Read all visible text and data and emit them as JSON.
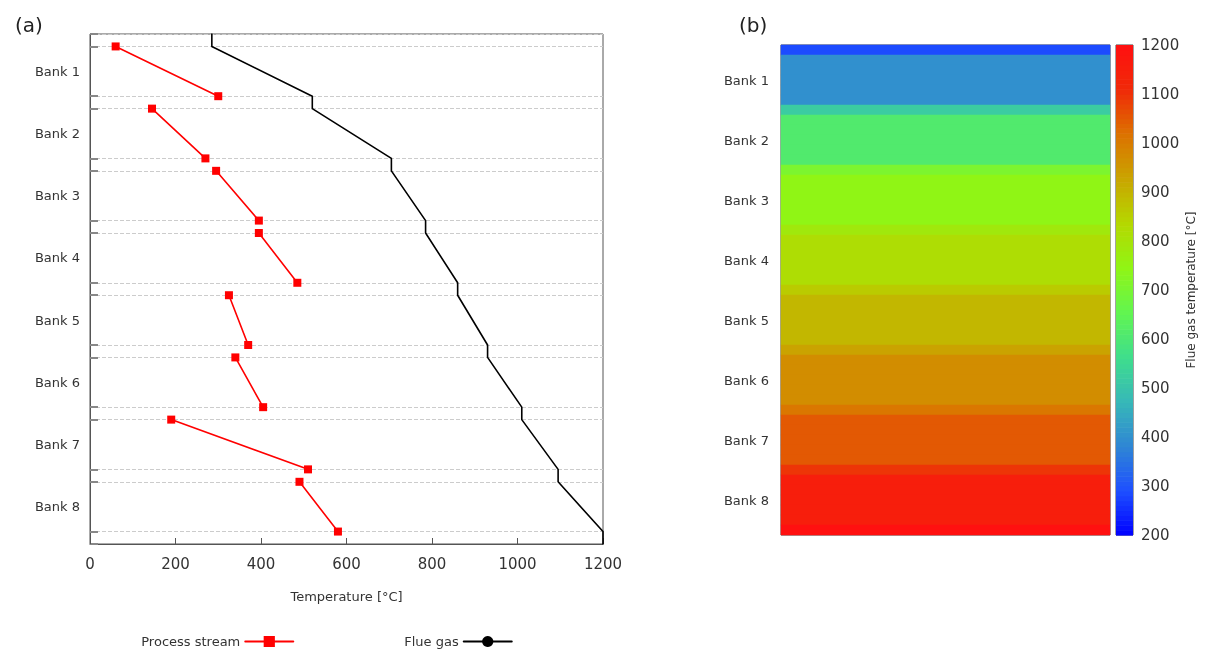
{
  "chart_data": [
    {
      "type": "line",
      "title": "(a)",
      "xlabel": "Temperature [°C]",
      "orientation": "horizontal",
      "xlim": [
        0,
        1200
      ],
      "xticks": [
        0,
        200,
        400,
        600,
        800,
        1000,
        1200
      ],
      "categories": [
        null,
        null,
        null,
        "Bank 1",
        null,
        null,
        null,
        null,
        "Bank 2",
        null,
        null,
        null,
        null,
        "Bank 3",
        null,
        null,
        null,
        null,
        "Bank 4",
        null,
        null,
        null,
        null,
        "Bank 5",
        null,
        null,
        null,
        null,
        "Bank 6",
        null,
        null,
        null,
        null,
        "Bank 7",
        null,
        null,
        null,
        null,
        "Bank 8",
        null,
        null,
        null
      ],
      "grid": "y",
      "legend": "bottom",
      "line_style": "solid",
      "series": [
        {
          "name": "Process stream",
          "color": "#ff0000",
          "marker": "square",
          "values": [
            null,
            60,
            null,
            null,
            null,
            300,
            null,
            null,
            null,
            null,
            null,
            null,
            null,
            null,
            null,
            null,
            null,
            null,
            null,
            null,
            null,
            null,
            null,
            null,
            null,
            null,
            null,
            null,
            null,
            null,
            null,
            null,
            null,
            null,
            null,
            null,
            null,
            null,
            null,
            null,
            null,
            null
          ]
        },
        {
          "color": "#ff0000",
          "marker": "square",
          "values": [
            null,
            null,
            null,
            null,
            null,
            null,
            145,
            null,
            null,
            null,
            270,
            null,
            null,
            null,
            null,
            null,
            null,
            null,
            null,
            null,
            null,
            null,
            null,
            null,
            null,
            null,
            null,
            null,
            null,
            null,
            null,
            null,
            null,
            null,
            null,
            null,
            null,
            null,
            null,
            null,
            null,
            null
          ]
        },
        {
          "color": "#ff0000",
          "marker": "square",
          "values": [
            null,
            null,
            null,
            null,
            null,
            null,
            null,
            null,
            null,
            null,
            null,
            295,
            null,
            null,
            null,
            395,
            null,
            null,
            null,
            null,
            null,
            null,
            null,
            null,
            null,
            null,
            null,
            null,
            null,
            null,
            null,
            null,
            null,
            null,
            null,
            null,
            null,
            null,
            null,
            null,
            null,
            null
          ]
        },
        {
          "color": "#ff0000",
          "marker": "square",
          "values": [
            null,
            null,
            null,
            null,
            null,
            null,
            null,
            null,
            null,
            null,
            null,
            null,
            null,
            null,
            null,
            null,
            395,
            null,
            null,
            null,
            485,
            null,
            null,
            null,
            null,
            null,
            null,
            null,
            null,
            null,
            null,
            null,
            null,
            null,
            null,
            null,
            null,
            null,
            null,
            null,
            null,
            null
          ]
        },
        {
          "color": "#ff0000",
          "marker": "square",
          "values": [
            null,
            null,
            null,
            null,
            null,
            null,
            null,
            null,
            null,
            null,
            null,
            null,
            null,
            null,
            null,
            null,
            null,
            null,
            null,
            null,
            null,
            325,
            null,
            null,
            null,
            370,
            null,
            null,
            null,
            null,
            null,
            null,
            null,
            null,
            null,
            null,
            null,
            null,
            null,
            null,
            null,
            null
          ]
        },
        {
          "color": "#ff0000",
          "marker": "square",
          "values": [
            null,
            null,
            null,
            null,
            null,
            null,
            null,
            null,
            null,
            null,
            null,
            null,
            null,
            null,
            null,
            null,
            null,
            null,
            null,
            null,
            null,
            null,
            null,
            null,
            null,
            null,
            340,
            null,
            null,
            null,
            405,
            null,
            null,
            null,
            null,
            null,
            null,
            null,
            null,
            null,
            null,
            null
          ]
        },
        {
          "color": "#ff0000",
          "marker": "square",
          "values": [
            null,
            null,
            null,
            null,
            null,
            null,
            null,
            null,
            null,
            null,
            null,
            null,
            null,
            null,
            null,
            null,
            null,
            null,
            null,
            null,
            null,
            null,
            null,
            null,
            null,
            null,
            null,
            null,
            null,
            null,
            null,
            190,
            null,
            null,
            null,
            510,
            null,
            null,
            null,
            null,
            null,
            null
          ]
        },
        {
          "color": "#ff0000",
          "marker": "square",
          "values": [
            null,
            null,
            null,
            null,
            null,
            null,
            null,
            null,
            null,
            null,
            null,
            null,
            null,
            null,
            null,
            null,
            null,
            null,
            null,
            null,
            null,
            null,
            null,
            null,
            null,
            null,
            null,
            null,
            null,
            null,
            null,
            null,
            null,
            null,
            null,
            null,
            490,
            null,
            null,
            null,
            580,
            null
          ]
        },
        {
          "name": "Flue gas",
          "color": "#000000",
          "marker": "none",
          "values": [
            285,
            285,
            null,
            null,
            null,
            520,
            520,
            null,
            null,
            null,
            705,
            705,
            null,
            null,
            null,
            785,
            785,
            null,
            null,
            null,
            860,
            860,
            null,
            null,
            null,
            930,
            930,
            null,
            null,
            null,
            1010,
            1010,
            null,
            null,
            null,
            1095,
            1095,
            null,
            null,
            null,
            1200,
            1200
          ]
        }
      ]
    },
    {
      "type": "heatmap",
      "title": "(b)",
      "categories": [
        null
      ],
      "y_categories": [
        null,
        null,
        null,
        "Bank 1",
        null,
        null,
        null,
        null,
        null,
        "Bank 2",
        null,
        null,
        null,
        null,
        null,
        "Bank 3",
        null,
        null,
        null,
        null,
        null,
        "Bank 4",
        null,
        null,
        null,
        null,
        null,
        "Bank 5",
        null,
        null,
        null,
        null,
        null,
        "Bank 6",
        null,
        null,
        null,
        null,
        null,
        "Bank 7",
        null,
        null,
        null,
        null,
        null,
        "Bank 8",
        null,
        null,
        null
      ],
      "cells": [
        [
          285
        ],
        [
          400
        ],
        [
          400
        ],
        [
          400
        ],
        [
          400
        ],
        [
          400
        ],
        [
          520
        ],
        [
          610
        ],
        [
          610
        ],
        [
          610
        ],
        [
          610
        ],
        [
          610
        ],
        [
          705
        ],
        [
          745
        ],
        [
          745
        ],
        [
          745
        ],
        [
          745
        ],
        [
          745
        ],
        [
          785
        ],
        [
          820
        ],
        [
          820
        ],
        [
          820
        ],
        [
          820
        ],
        [
          820
        ],
        [
          860
        ],
        [
          895
        ],
        [
          895
        ],
        [
          895
        ],
        [
          895
        ],
        [
          895
        ],
        [
          930
        ],
        [
          970
        ],
        [
          970
        ],
        [
          970
        ],
        [
          970
        ],
        [
          970
        ],
        [
          1010
        ],
        [
          1050
        ],
        [
          1050
        ],
        [
          1050
        ],
        [
          1050
        ],
        [
          1050
        ],
        [
          1095
        ],
        [
          1150
        ],
        [
          1150
        ],
        [
          1150
        ],
        [
          1150
        ],
        [
          1150
        ],
        [
          1200
        ]
      ],
      "clim": [
        200,
        1200
      ],
      "cticks": [
        200,
        300,
        400,
        500,
        600,
        700,
        800,
        900,
        1000,
        1100,
        1200
      ],
      "clabel": "Flue gas temperature [°C]"
    }
  ]
}
